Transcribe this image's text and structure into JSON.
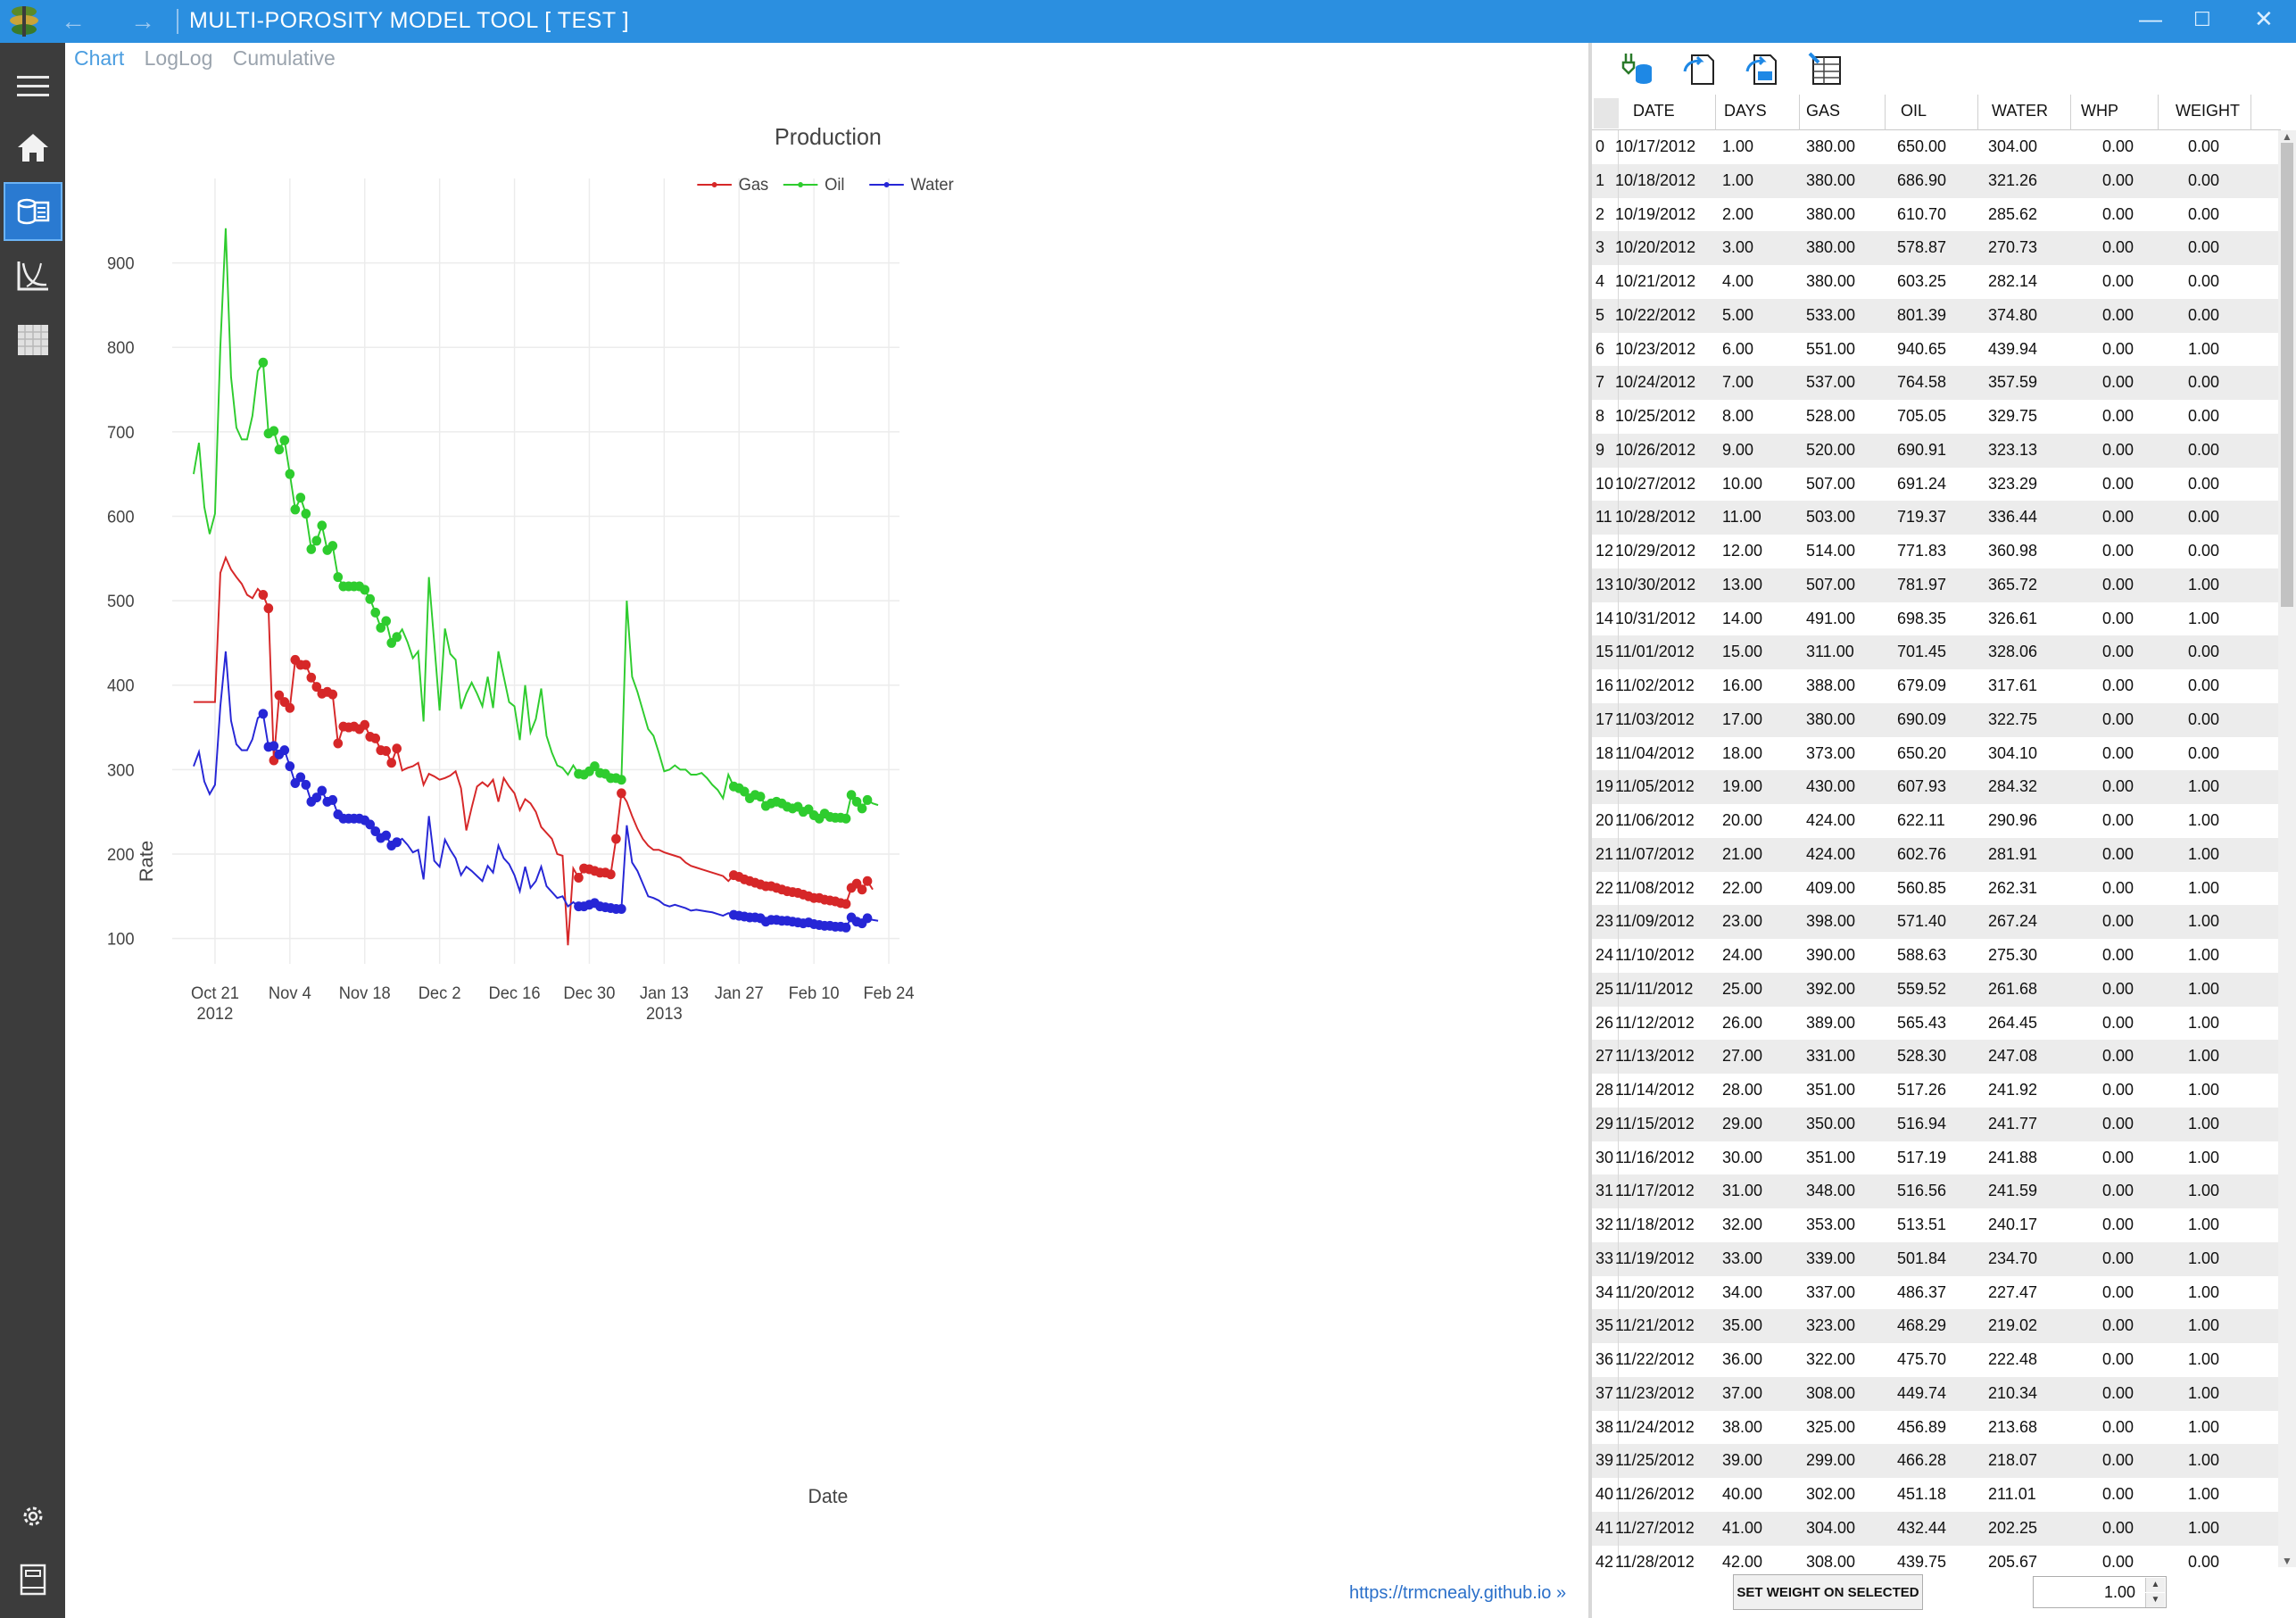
{
  "window": {
    "title": "MULTI-POROSITY MODEL TOOL [ TEST ]",
    "back_icon": "arrow-left-icon",
    "forward_icon": "arrow-right-icon"
  },
  "colors": {
    "titlebar": "#2b8fe0",
    "sidebar": "#3c3c3c",
    "active_tab": "#4a9de0",
    "gas": "#d62728",
    "oil": "#2ecc2e",
    "water": "#2626d6"
  },
  "sidebar": {
    "icons": [
      "hamburger-menu-icon",
      "home-icon",
      "production-data-icon",
      "curve-chart-icon",
      "grid-table-icon",
      "settings-icon",
      "notebook-icon"
    ]
  },
  "tabs": [
    "Chart",
    "LogLog",
    "Cumulative"
  ],
  "link": "https://trmcnealy.github.io »",
  "chart_data": {
    "type": "line",
    "title": "Production",
    "xlabel": "Date",
    "ylabel": "Rate",
    "legend_position": "top-center",
    "grid": true,
    "x_range": [
      "2012-10-13",
      "2013-02-26"
    ],
    "ylim": [
      70,
      1000
    ],
    "yticks": [
      100,
      200,
      300,
      400,
      500,
      600,
      700,
      800,
      900
    ],
    "xticks": [
      {
        "date": "2012-10-21",
        "label": "Oct 21",
        "sub": "2012"
      },
      {
        "date": "2012-11-04",
        "label": "Nov 4",
        "sub": ""
      },
      {
        "date": "2012-11-18",
        "label": "Nov 18",
        "sub": ""
      },
      {
        "date": "2012-12-02",
        "label": "Dec 2",
        "sub": ""
      },
      {
        "date": "2012-12-16",
        "label": "Dec 16",
        "sub": ""
      },
      {
        "date": "2012-12-30",
        "label": "Dec 30",
        "sub": ""
      },
      {
        "date": "2013-01-13",
        "label": "Jan 13",
        "sub": "2013"
      },
      {
        "date": "2013-01-27",
        "label": "Jan 27",
        "sub": ""
      },
      {
        "date": "2013-02-10",
        "label": "Feb 10",
        "sub": ""
      },
      {
        "date": "2013-02-24",
        "label": "Feb 24",
        "sub": ""
      }
    ],
    "start_date": "2012-10-17",
    "series": [
      {
        "name": "Gas",
        "color": "#d62728",
        "values": [
          380,
          380,
          380,
          380,
          380,
          533,
          551,
          537,
          528,
          520,
          507,
          503,
          514,
          507,
          491,
          311,
          388,
          380,
          373,
          430,
          424,
          424,
          409,
          398,
          390,
          392,
          389,
          331,
          351,
          350,
          351,
          348,
          353,
          339,
          337,
          323,
          322,
          308,
          325,
          299,
          302,
          304,
          308,
          282,
          295,
          292,
          288,
          290,
          293,
          298,
          278,
          228,
          255,
          280,
          285,
          280,
          288,
          262,
          290,
          280,
          272,
          252,
          265,
          260,
          250,
          232,
          225,
          218,
          200,
          198,
          92,
          183,
          172,
          183,
          182,
          180,
          178,
          178,
          176,
          218,
          272,
          262,
          245,
          230,
          218,
          210,
          205,
          205,
          202,
          200,
          198,
          196,
          190,
          186,
          184,
          182,
          180,
          178,
          176,
          174,
          168,
          175,
          173,
          170,
          168,
          166,
          164,
          162,
          162,
          160,
          158,
          156,
          155,
          154,
          152,
          150,
          148,
          148,
          146,
          145,
          144,
          142,
          141,
          160,
          165,
          158,
          168,
          158
        ]
      },
      {
        "name": "Oil",
        "color": "#2ecc2e",
        "values": [
          650,
          687,
          611,
          579,
          603,
          801,
          941,
          765,
          705,
          691,
          691,
          719,
          772,
          782,
          698,
          701,
          679,
          690,
          650,
          608,
          622,
          603,
          561,
          571,
          589,
          560,
          565,
          528,
          517,
          517,
          517,
          517,
          513,
          502,
          486,
          468,
          476,
          450,
          457,
          466,
          451,
          432,
          440,
          357,
          528,
          450,
          370,
          467,
          437,
          430,
          372,
          390,
          403,
          390,
          375,
          410,
          373,
          440,
          410,
          380,
          375,
          335,
          400,
          344,
          360,
          396,
          340,
          320,
          305,
          302,
          294,
          305,
          295,
          294,
          298,
          304,
          296,
          295,
          290,
          290,
          288,
          500,
          410,
          392,
          370,
          348,
          340,
          320,
          298,
          300,
          305,
          300,
          300,
          294,
          294,
          296,
          290,
          282,
          276,
          266,
          294,
          280,
          278,
          274,
          266,
          270,
          268,
          257,
          260,
          262,
          260,
          256,
          254,
          256,
          250,
          253,
          246,
          242,
          248,
          244,
          243,
          243,
          242,
          270,
          262,
          254,
          264,
          260,
          258
        ]
      },
      {
        "name": "Water",
        "color": "#2626d6",
        "values": [
          304,
          321,
          286,
          271,
          282,
          375,
          440,
          358,
          330,
          323,
          323,
          336,
          361,
          366,
          327,
          328,
          318,
          323,
          304,
          284,
          291,
          282,
          262,
          267,
          275,
          262,
          264,
          247,
          242,
          242,
          242,
          242,
          240,
          235,
          227,
          219,
          222,
          210,
          214,
          218,
          211,
          202,
          205,
          170,
          245,
          192,
          185,
          217,
          205,
          195,
          175,
          185,
          180,
          174,
          168,
          186,
          178,
          210,
          195,
          188,
          175,
          156,
          185,
          160,
          168,
          185,
          162,
          155,
          148,
          150,
          138,
          143,
          138,
          138,
          140,
          142,
          138,
          137,
          136,
          135,
          135,
          234,
          190,
          180,
          165,
          150,
          148,
          145,
          140,
          138,
          140,
          138,
          136,
          133,
          134,
          133,
          132,
          131,
          129,
          127,
          130,
          128,
          127,
          126,
          125,
          125,
          124,
          120,
          122,
          122,
          121,
          121,
          120,
          119,
          118,
          119,
          117,
          116,
          115,
          115,
          114,
          114,
          113,
          125,
          120,
          118,
          124,
          122,
          121
        ]
      }
    ],
    "marked_ranges": [
      [
        13,
        38
      ],
      [
        72,
        80
      ],
      [
        101,
        126
      ]
    ]
  },
  "table": {
    "columns": [
      "DATE",
      "DAYS",
      "GAS",
      "OIL",
      "WATER",
      "WHP",
      "WEIGHT"
    ],
    "rows": [
      [
        "0",
        "10/17/2012",
        "1.00",
        "380.00",
        "650.00",
        "304.00",
        "0.00",
        "0.00"
      ],
      [
        "1",
        "10/18/2012",
        "1.00",
        "380.00",
        "686.90",
        "321.26",
        "0.00",
        "0.00"
      ],
      [
        "2",
        "10/19/2012",
        "2.00",
        "380.00",
        "610.70",
        "285.62",
        "0.00",
        "0.00"
      ],
      [
        "3",
        "10/20/2012",
        "3.00",
        "380.00",
        "578.87",
        "270.73",
        "0.00",
        "0.00"
      ],
      [
        "4",
        "10/21/2012",
        "4.00",
        "380.00",
        "603.25",
        "282.14",
        "0.00",
        "0.00"
      ],
      [
        "5",
        "10/22/2012",
        "5.00",
        "533.00",
        "801.39",
        "374.80",
        "0.00",
        "0.00"
      ],
      [
        "6",
        "10/23/2012",
        "6.00",
        "551.00",
        "940.65",
        "439.94",
        "0.00",
        "1.00"
      ],
      [
        "7",
        "10/24/2012",
        "7.00",
        "537.00",
        "764.58",
        "357.59",
        "0.00",
        "0.00"
      ],
      [
        "8",
        "10/25/2012",
        "8.00",
        "528.00",
        "705.05",
        "329.75",
        "0.00",
        "0.00"
      ],
      [
        "9",
        "10/26/2012",
        "9.00",
        "520.00",
        "690.91",
        "323.13",
        "0.00",
        "0.00"
      ],
      [
        "10",
        "10/27/2012",
        "10.00",
        "507.00",
        "691.24",
        "323.29",
        "0.00",
        "0.00"
      ],
      [
        "11",
        "10/28/2012",
        "11.00",
        "503.00",
        "719.37",
        "336.44",
        "0.00",
        "0.00"
      ],
      [
        "12",
        "10/29/2012",
        "12.00",
        "514.00",
        "771.83",
        "360.98",
        "0.00",
        "0.00"
      ],
      [
        "13",
        "10/30/2012",
        "13.00",
        "507.00",
        "781.97",
        "365.72",
        "0.00",
        "1.00"
      ],
      [
        "14",
        "10/31/2012",
        "14.00",
        "491.00",
        "698.35",
        "326.61",
        "0.00",
        "1.00"
      ],
      [
        "15",
        "11/01/2012",
        "15.00",
        "311.00",
        "701.45",
        "328.06",
        "0.00",
        "0.00"
      ],
      [
        "16",
        "11/02/2012",
        "16.00",
        "388.00",
        "679.09",
        "317.61",
        "0.00",
        "0.00"
      ],
      [
        "17",
        "11/03/2012",
        "17.00",
        "380.00",
        "690.09",
        "322.75",
        "0.00",
        "0.00"
      ],
      [
        "18",
        "11/04/2012",
        "18.00",
        "373.00",
        "650.20",
        "304.10",
        "0.00",
        "0.00"
      ],
      [
        "19",
        "11/05/2012",
        "19.00",
        "430.00",
        "607.93",
        "284.32",
        "0.00",
        "1.00"
      ],
      [
        "20",
        "11/06/2012",
        "20.00",
        "424.00",
        "622.11",
        "290.96",
        "0.00",
        "1.00"
      ],
      [
        "21",
        "11/07/2012",
        "21.00",
        "424.00",
        "602.76",
        "281.91",
        "0.00",
        "1.00"
      ],
      [
        "22",
        "11/08/2012",
        "22.00",
        "409.00",
        "560.85",
        "262.31",
        "0.00",
        "1.00"
      ],
      [
        "23",
        "11/09/2012",
        "23.00",
        "398.00",
        "571.40",
        "267.24",
        "0.00",
        "1.00"
      ],
      [
        "24",
        "11/10/2012",
        "24.00",
        "390.00",
        "588.63",
        "275.30",
        "0.00",
        "1.00"
      ],
      [
        "25",
        "11/11/2012",
        "25.00",
        "392.00",
        "559.52",
        "261.68",
        "0.00",
        "1.00"
      ],
      [
        "26",
        "11/12/2012",
        "26.00",
        "389.00",
        "565.43",
        "264.45",
        "0.00",
        "1.00"
      ],
      [
        "27",
        "11/13/2012",
        "27.00",
        "331.00",
        "528.30",
        "247.08",
        "0.00",
        "1.00"
      ],
      [
        "28",
        "11/14/2012",
        "28.00",
        "351.00",
        "517.26",
        "241.92",
        "0.00",
        "1.00"
      ],
      [
        "29",
        "11/15/2012",
        "29.00",
        "350.00",
        "516.94",
        "241.77",
        "0.00",
        "1.00"
      ],
      [
        "30",
        "11/16/2012",
        "30.00",
        "351.00",
        "517.19",
        "241.88",
        "0.00",
        "1.00"
      ],
      [
        "31",
        "11/17/2012",
        "31.00",
        "348.00",
        "516.56",
        "241.59",
        "0.00",
        "1.00"
      ],
      [
        "32",
        "11/18/2012",
        "32.00",
        "353.00",
        "513.51",
        "240.17",
        "0.00",
        "1.00"
      ],
      [
        "33",
        "11/19/2012",
        "33.00",
        "339.00",
        "501.84",
        "234.70",
        "0.00",
        "1.00"
      ],
      [
        "34",
        "11/20/2012",
        "34.00",
        "337.00",
        "486.37",
        "227.47",
        "0.00",
        "1.00"
      ],
      [
        "35",
        "11/21/2012",
        "35.00",
        "323.00",
        "468.29",
        "219.02",
        "0.00",
        "1.00"
      ],
      [
        "36",
        "11/22/2012",
        "36.00",
        "322.00",
        "475.70",
        "222.48",
        "0.00",
        "1.00"
      ],
      [
        "37",
        "11/23/2012",
        "37.00",
        "308.00",
        "449.74",
        "210.34",
        "0.00",
        "1.00"
      ],
      [
        "38",
        "11/24/2012",
        "38.00",
        "325.00",
        "456.89",
        "213.68",
        "0.00",
        "1.00"
      ],
      [
        "39",
        "11/25/2012",
        "39.00",
        "299.00",
        "466.28",
        "218.07",
        "0.00",
        "1.00"
      ],
      [
        "40",
        "11/26/2012",
        "40.00",
        "302.00",
        "451.18",
        "211.01",
        "0.00",
        "1.00"
      ],
      [
        "41",
        "11/27/2012",
        "41.00",
        "304.00",
        "432.44",
        "202.25",
        "0.00",
        "1.00"
      ],
      [
        "42",
        "11/28/2012",
        "42.00",
        "308.00",
        "439.75",
        "205.67",
        "0.00",
        "0.00"
      ]
    ]
  },
  "toolbar": {
    "icons": [
      "import-data-icon",
      "export-data-icon",
      "export-all-icon",
      "edit-table-icon"
    ]
  },
  "footer": {
    "set_weight_label": "SET WEIGHT ON SELECTED",
    "weight_value": "1.00"
  }
}
